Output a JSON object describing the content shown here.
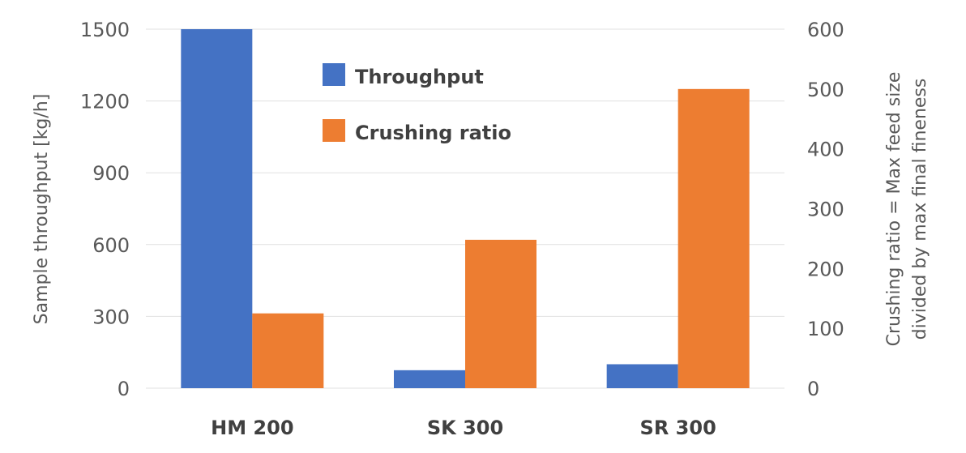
{
  "chart_data": {
    "type": "bar",
    "categories": [
      "HM 200",
      "SK 300",
      "SR 300"
    ],
    "series": [
      {
        "name": "Throughput",
        "axis": "left",
        "color": "#4472c4",
        "values": [
          1500,
          75,
          100
        ]
      },
      {
        "name": "Crushing ratio",
        "axis": "right",
        "color": "#ed7d31",
        "values": [
          125,
          248,
          500
        ]
      }
    ],
    "y_left": {
      "label": "Sample throughput [kg/h]",
      "ticks": [
        "0",
        "300",
        "600",
        "900",
        "1200",
        "1500"
      ],
      "ylim": [
        0,
        1500
      ]
    },
    "y_right": {
      "label_line1": "Crushing ratio = Max feed size",
      "label_line2": "divided by max final fineness",
      "ticks": [
        "0",
        "100",
        "200",
        "300",
        "400",
        "500",
        "600"
      ],
      "ylim": [
        0,
        600
      ]
    },
    "grid": true,
    "legend": "top-center"
  }
}
